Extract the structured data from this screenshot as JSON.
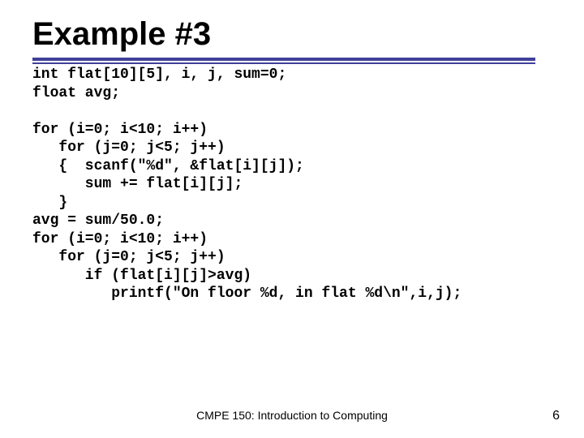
{
  "title": "Example #3",
  "colors": {
    "rule": "#3f3f99",
    "text": "#000000",
    "background": "#ffffff"
  },
  "code_lines": [
    "int flat[10][5], i, j, sum=0;",
    "float avg;",
    "",
    "for (i=0; i<10; i++)",
    "   for (j=0; j<5; j++)",
    "   {  scanf(\"%d\", &flat[i][j]);",
    "      sum += flat[i][j];",
    "   }",
    "avg = sum/50.0;",
    "for (i=0; i<10; i++)",
    "   for (j=0; j<5; j++)",
    "      if (flat[i][j]>avg)",
    "         printf(\"On floor %d, in flat %d\\n\",i,j);"
  ],
  "footer": {
    "course": "CMPE 150: Introduction to Computing",
    "page": "6"
  },
  "style": {
    "title_fontsize": 40,
    "code_fontsize": 18,
    "footer_fontsize": 14,
    "rule1_height": 4,
    "rule2_height": 2,
    "rule_width": 620
  }
}
